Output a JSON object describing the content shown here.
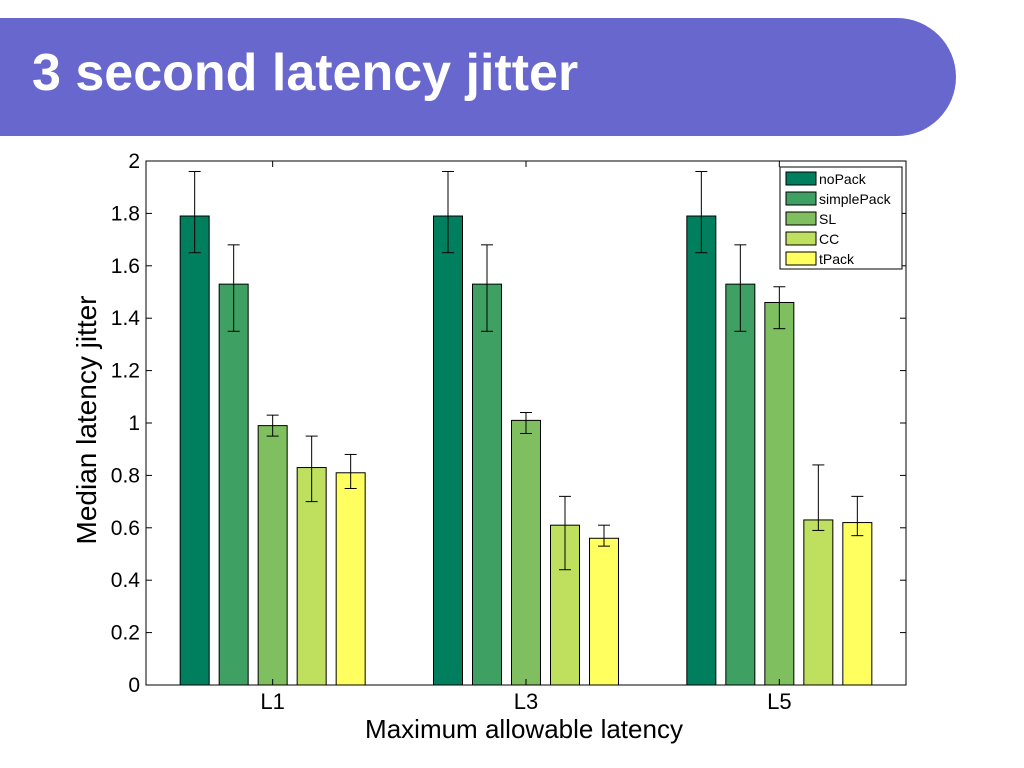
{
  "slide": {
    "title": "3 second latency jitter"
  },
  "chart_data": {
    "type": "bar",
    "title": "",
    "xlabel": "Maximum allowable latency",
    "ylabel": "Median latency jitter",
    "ylim": [
      0,
      2
    ],
    "yticks": [
      "0",
      "0.2",
      "0.4",
      "0.6",
      "0.8",
      "1",
      "1.2",
      "1.4",
      "1.6",
      "1.8",
      "2"
    ],
    "categories": [
      "L1",
      "L3",
      "L5"
    ],
    "legend_position": "top-right",
    "grid": false,
    "error_bars": true,
    "series": [
      {
        "name": "noPack",
        "color": "#007f5f",
        "values": [
          1.79,
          1.79,
          1.79
        ],
        "err_low": [
          1.65,
          1.65,
          1.65
        ],
        "err_high": [
          1.96,
          1.96,
          1.96
        ]
      },
      {
        "name": "simplePack",
        "color": "#3fa063",
        "values": [
          1.53,
          1.53,
          1.53
        ],
        "err_low": [
          1.35,
          1.35,
          1.35
        ],
        "err_high": [
          1.68,
          1.68,
          1.68
        ]
      },
      {
        "name": "SL",
        "color": "#7fbf5f",
        "values": [
          0.99,
          1.01,
          1.46
        ],
        "err_low": [
          0.95,
          0.96,
          1.36
        ],
        "err_high": [
          1.03,
          1.04,
          1.52
        ]
      },
      {
        "name": "CC",
        "color": "#bfdf5f",
        "values": [
          0.83,
          0.61,
          0.63
        ],
        "err_low": [
          0.7,
          0.44,
          0.59
        ],
        "err_high": [
          0.95,
          0.72,
          0.84
        ]
      },
      {
        "name": "tPack",
        "color": "#ffff5f",
        "values": [
          0.81,
          0.56,
          0.62
        ],
        "err_low": [
          0.75,
          0.53,
          0.57
        ],
        "err_high": [
          0.88,
          0.61,
          0.72
        ]
      }
    ]
  }
}
